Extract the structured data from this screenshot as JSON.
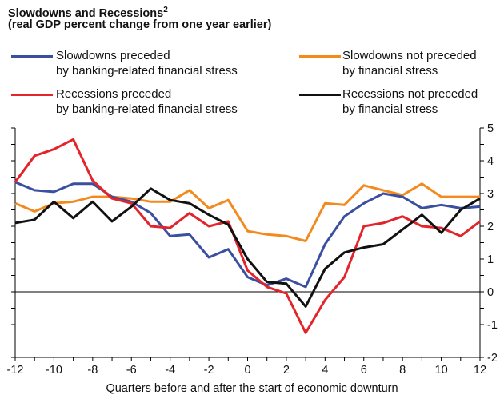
{
  "chart_data": {
    "type": "line",
    "title": "Slowdowns and Recessions",
    "title_sup": "2",
    "subtitle": "(real GDP percent change from one year earlier)",
    "xlabel": "Quarters before and after the start of economic downturn",
    "ylabel": "",
    "xlim": [
      -12,
      12
    ],
    "ylim": [
      -2,
      5
    ],
    "x_ticks": [
      -12,
      -10,
      -8,
      -6,
      -4,
      -2,
      0,
      2,
      4,
      6,
      8,
      10,
      12
    ],
    "y_ticks": [
      -2,
      -1,
      0,
      1,
      2,
      3,
      4,
      5
    ],
    "legend_position": "top",
    "x": [
      -12,
      -11,
      -10,
      -9,
      -8,
      -7,
      -6,
      -5,
      -4,
      -3,
      -2,
      -1,
      0,
      1,
      2,
      3,
      4,
      5,
      6,
      7,
      8,
      9,
      10,
      11,
      12
    ],
    "series": [
      {
        "name": "Slowdowns preceded by banking-related financial stress",
        "legend_lines": [
          "Slowdowns preceded",
          "by banking-related financial stress"
        ],
        "color": "#3b4fa0",
        "values": [
          3.35,
          3.1,
          3.05,
          3.3,
          3.3,
          2.9,
          2.75,
          2.4,
          1.7,
          1.75,
          1.05,
          1.3,
          0.45,
          0.2,
          0.4,
          0.15,
          1.45,
          2.3,
          2.7,
          3.0,
          2.9,
          2.55,
          2.65,
          2.55,
          2.6
        ]
      },
      {
        "name": "Slowdowns not preceded by financial stress",
        "legend_lines": [
          "Slowdowns not preceded",
          "by financial stress"
        ],
        "color": "#f28a1e",
        "values": [
          2.7,
          2.45,
          2.7,
          2.75,
          2.9,
          2.9,
          2.85,
          2.75,
          2.75,
          3.1,
          2.55,
          2.8,
          1.85,
          1.75,
          1.7,
          1.55,
          2.7,
          2.65,
          3.25,
          3.1,
          2.95,
          3.3,
          2.9,
          2.9,
          2.9
        ]
      },
      {
        "name": "Recessions preceded by banking-related financial stress",
        "legend_lines": [
          "Recessions preceded",
          "by banking-related financial stress"
        ],
        "color": "#e3242b",
        "values": [
          3.35,
          4.15,
          4.35,
          4.65,
          3.4,
          2.85,
          2.7,
          2.0,
          1.95,
          2.4,
          2.0,
          2.15,
          0.65,
          0.15,
          -0.05,
          -1.25,
          -0.25,
          0.45,
          2.0,
          2.1,
          2.3,
          2.0,
          1.95,
          1.7,
          2.15
        ]
      },
      {
        "name": "Recessions not preceded by financial stress",
        "legend_lines": [
          "Recessions not preceded",
          "by financial stress"
        ],
        "color": "#111111",
        "values": [
          2.1,
          2.2,
          2.75,
          2.25,
          2.75,
          2.15,
          2.6,
          3.15,
          2.8,
          2.7,
          2.35,
          2.05,
          1.0,
          0.3,
          0.25,
          -0.45,
          0.7,
          1.2,
          1.35,
          1.45,
          1.9,
          2.35,
          1.8,
          2.5,
          2.85
        ]
      }
    ]
  }
}
